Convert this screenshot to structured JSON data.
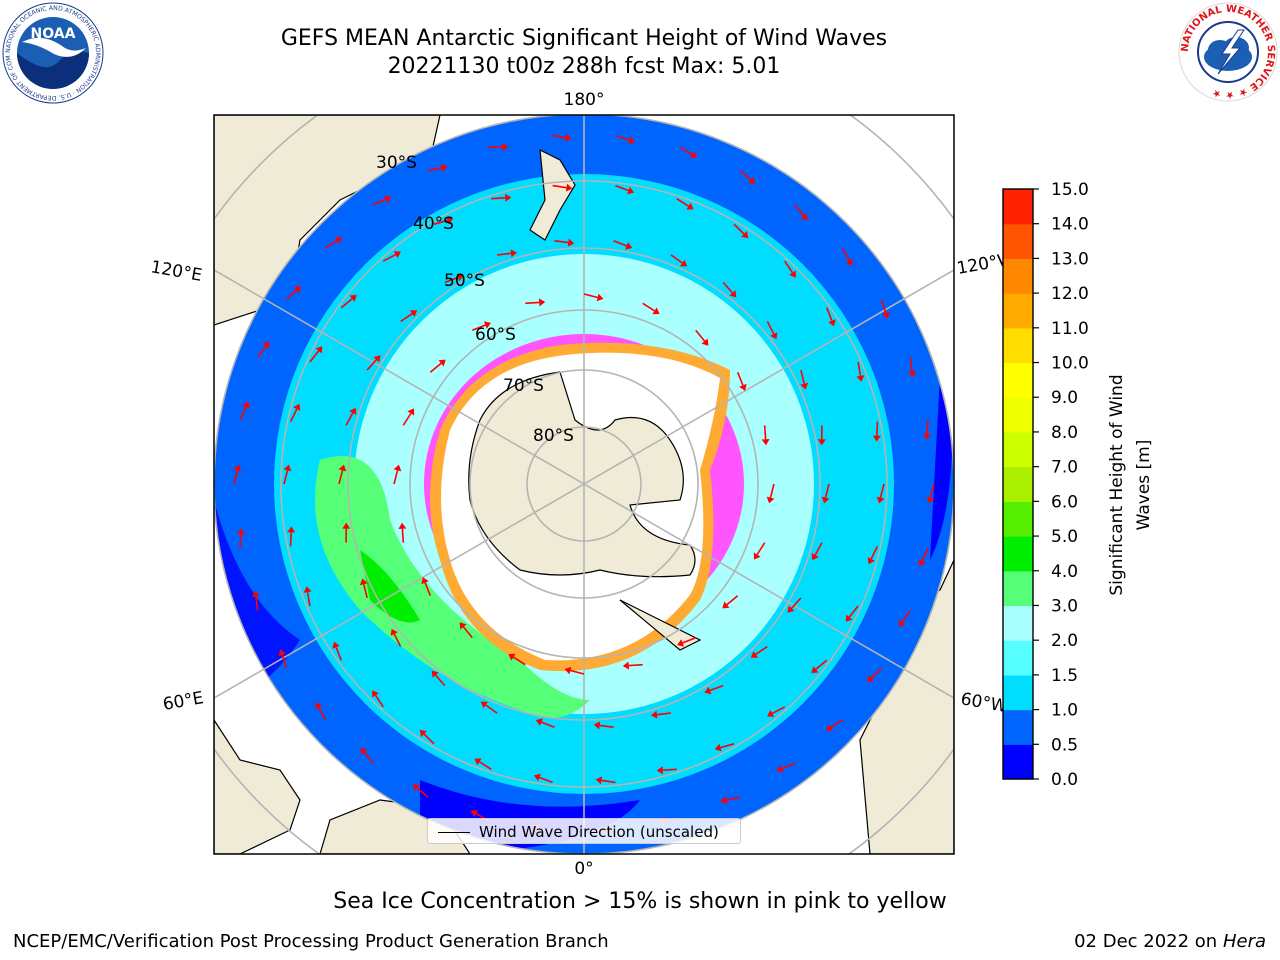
{
  "header": {
    "title": "GEFS MEAN Antarctic Significant Height of Wind Waves",
    "subtitle": "20221130 t00z 288h fcst   Max: 5.01"
  },
  "logos": {
    "left": {
      "text": "NOAA",
      "ring_text": "NATIONAL OCEANIC AND ATMOSPHERIC ADMINISTRATION · U.S. DEPARTMENT OF COMMERCE ·"
    },
    "right": {
      "ring_text": "NATIONAL WEATHER SERVICE ★ ★ ★"
    }
  },
  "map": {
    "projection": "south-polar-stereographic",
    "lon_labels": [
      "180°",
      "120°E",
      "120°W",
      "60°E",
      "60°W",
      "0°"
    ],
    "lat_labels": [
      "30°S",
      "40°S",
      "50°S",
      "60°S",
      "70°S",
      "80°S"
    ],
    "colors": {
      "land": "#efebd7",
      "ice": "#ffffff",
      "arrow": "#ff0000",
      "grid": "#b4b4b4"
    }
  },
  "legend": {
    "label": "Wind Wave Direction (unscaled)"
  },
  "colorbar": {
    "label_line1": "Significant Height of Wind",
    "label_line2": "Waves [m]",
    "ticks": [
      "0.0",
      "0.5",
      "1.0",
      "1.5",
      "2.0",
      "3.0",
      "4.0",
      "5.0",
      "6.0",
      "7.0",
      "8.0",
      "9.0",
      "10.0",
      "11.0",
      "12.0",
      "13.0",
      "14.0",
      "15.0"
    ],
    "colors": [
      "#0000ff",
      "#0064ff",
      "#00ddff",
      "#55ffff",
      "#aaffff",
      "#55ff77",
      "#00ee00",
      "#55ee00",
      "#aaee00",
      "#ccff00",
      "#eeff00",
      "#ffff00",
      "#ffdd00",
      "#ffaa00",
      "#ff8800",
      "#ff5500",
      "#ff2200",
      "#ff0000"
    ]
  },
  "footer": {
    "note": "Sea Ice Concentration > 15% is shown in pink to yellow",
    "left": "NCEP/EMC/Verification Post Processing Product Generation Branch",
    "right_date": "02 Dec 2022 on",
    "right_machine": "Hera"
  }
}
